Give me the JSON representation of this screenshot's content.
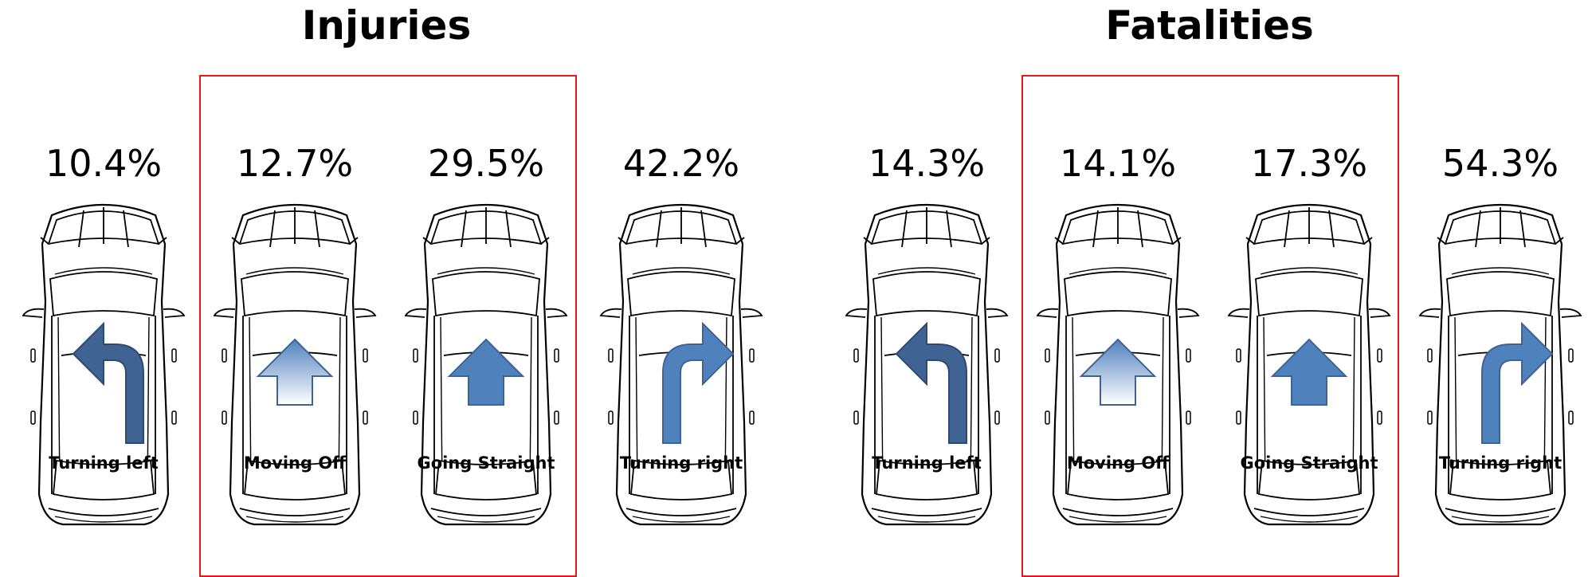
{
  "panels": [
    {
      "title": "Injuries",
      "items": [
        {
          "percent": "10.4%",
          "label": "Turning left",
          "arrow_icon": "turn-left-arrow-icon"
        },
        {
          "percent": "12.7%",
          "label": "Moving Off",
          "arrow_icon": "gradient-up-arrow-icon"
        },
        {
          "percent": "29.5%",
          "label": "Going Straight",
          "arrow_icon": "up-arrow-icon"
        },
        {
          "percent": "42.2%",
          "label": "Turning right",
          "arrow_icon": "turn-right-arrow-icon"
        }
      ]
    },
    {
      "title": "Fatalities",
      "items": [
        {
          "percent": "14.3%",
          "label": "Turning left",
          "arrow_icon": "turn-left-arrow-icon"
        },
        {
          "percent": "14.1%",
          "label": "Moving Off",
          "arrow_icon": "gradient-up-arrow-icon"
        },
        {
          "percent": "17.3%",
          "label": "Going Straight",
          "arrow_icon": "up-arrow-icon"
        },
        {
          "percent": "54.3%",
          "label": "Turning right",
          "arrow_icon": "turn-right-arrow-icon"
        }
      ]
    }
  ],
  "colors": {
    "highlight_box": "#e31a1c",
    "arrow_fill": "#4f81bd",
    "arrow_dark": "#3f6494",
    "car_outline": "#000000"
  }
}
